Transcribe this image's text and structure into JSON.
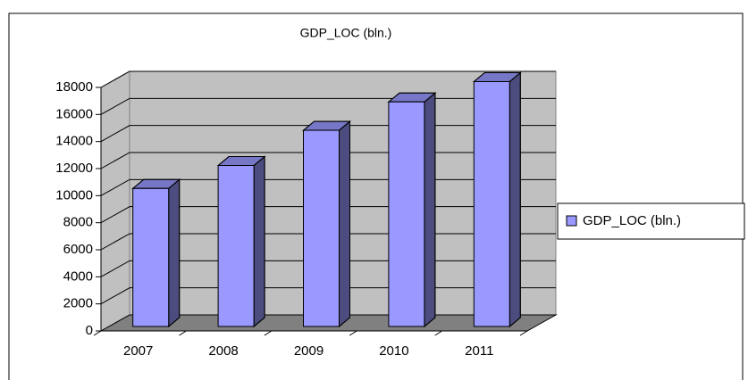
{
  "chart_data": {
    "type": "bar3d",
    "title": "GDP_LOC (bln.)",
    "categories": [
      "2007",
      "2008",
      "2009",
      "2010",
      "2011"
    ],
    "series": [
      {
        "name": "GDP_LOC (bln.)",
        "color": "#9999ff",
        "values": [
          10200,
          11900,
          14500,
          16600,
          18100
        ]
      }
    ],
    "ylim": [
      0,
      18000
    ],
    "yticks": [
      0,
      2000,
      4000,
      6000,
      8000,
      10000,
      12000,
      14000,
      16000,
      18000
    ],
    "grid": true,
    "legend": "right"
  }
}
